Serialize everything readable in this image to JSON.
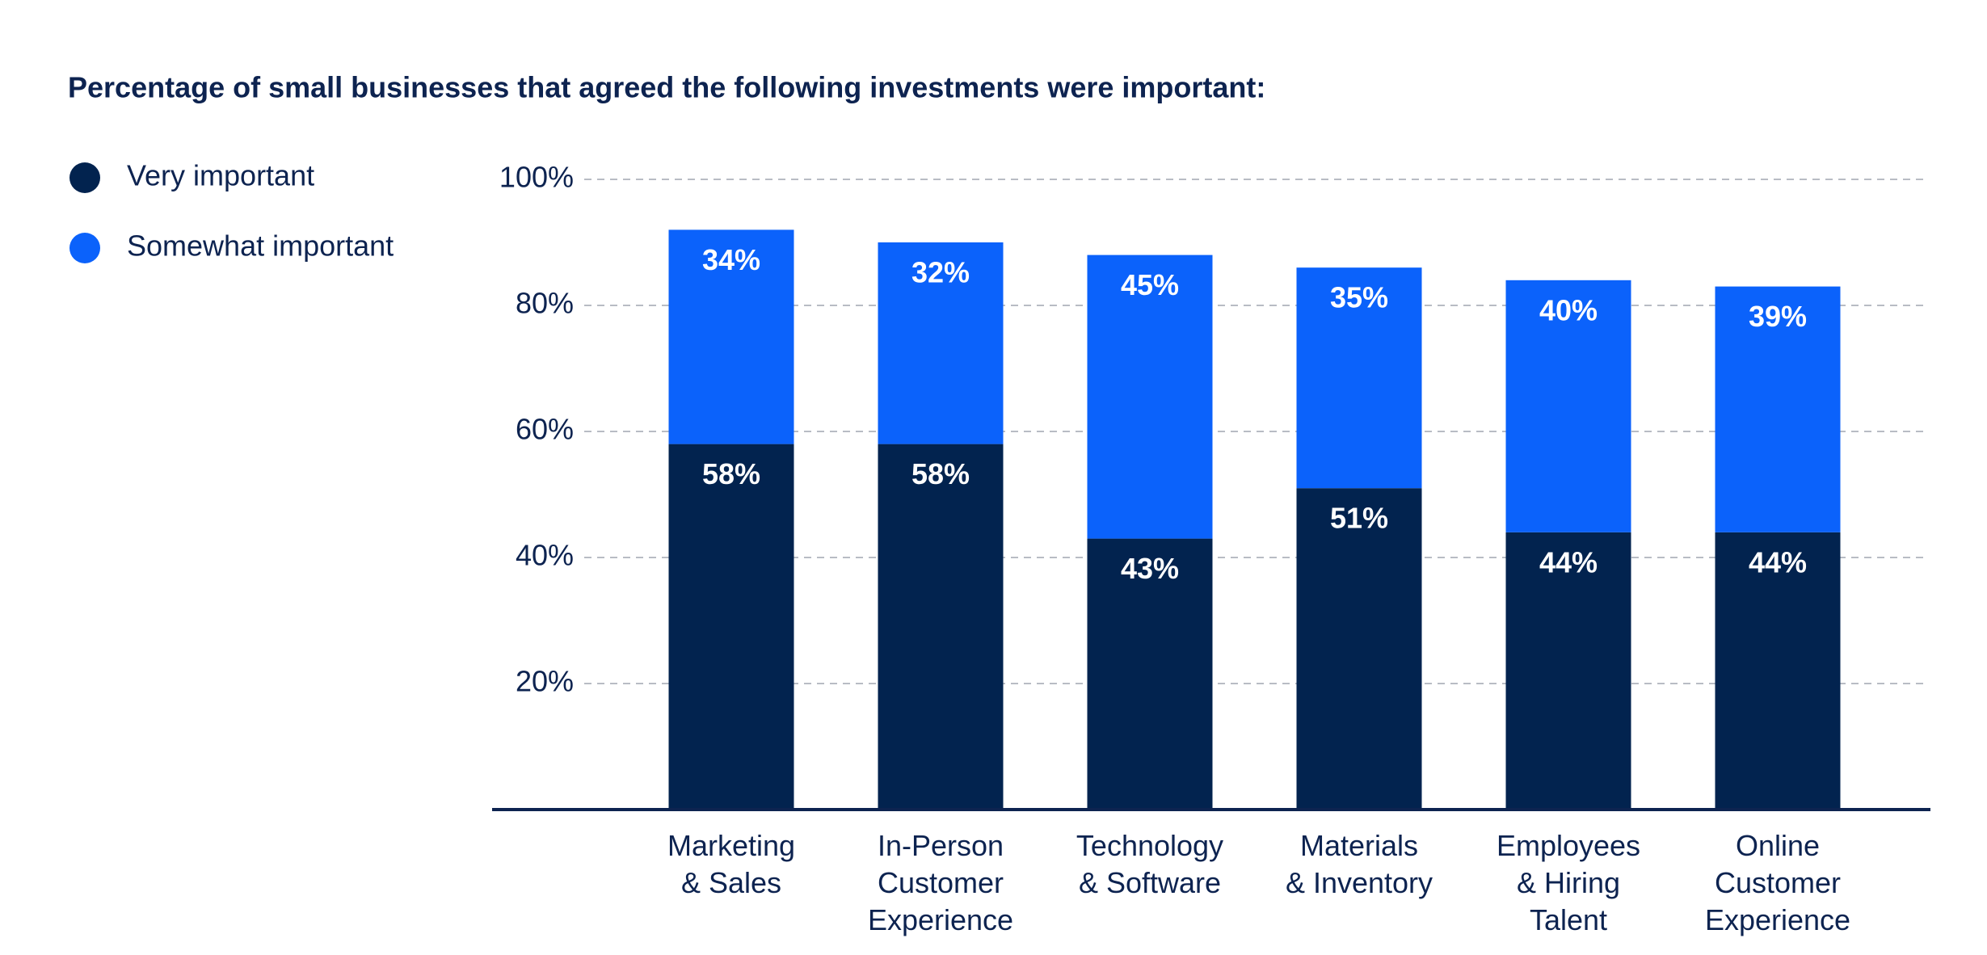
{
  "chart_data": {
    "type": "stacked_bar",
    "title": "Percentage of small businesses that agreed the following investments were important:",
    "categories": [
      "Marketing\n& Sales",
      "In-Person\nCustomer\nExperience",
      "Technology\n& Software",
      "Materials\n& Inventory",
      "Employees\n& Hiring\nTalent",
      "Online\nCustomer\nExperience"
    ],
    "series": [
      {
        "name": "Very important",
        "color": "#02234f",
        "values": [
          58,
          58,
          43,
          51,
          44,
          44
        ],
        "value_labels": [
          "58%",
          "58%",
          "43%",
          "51%",
          "44%",
          "44%"
        ]
      },
      {
        "name": "Somewhat important",
        "color": "#0b62fb",
        "values": [
          34,
          32,
          45,
          35,
          40,
          39
        ],
        "value_labels": [
          "34%",
          "32%",
          "45%",
          "35%",
          "40%",
          "39%"
        ]
      }
    ],
    "ylim": [
      0,
      100
    ],
    "yticks": [
      {
        "value": 20,
        "label": "20%"
      },
      {
        "value": 40,
        "label": "40%"
      },
      {
        "value": 60,
        "label": "60%"
      },
      {
        "value": 80,
        "label": "80%"
      },
      {
        "value": 100,
        "label": "100%"
      }
    ],
    "grid": true,
    "legend": "left"
  }
}
